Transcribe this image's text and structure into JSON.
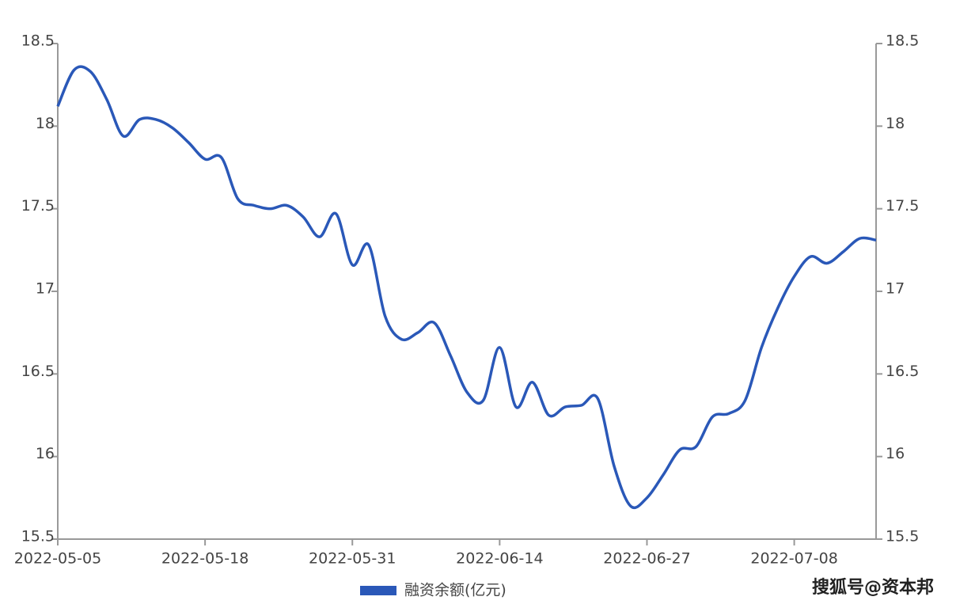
{
  "chart_data": {
    "type": "line",
    "categories": [
      "2022-05-05",
      null,
      null,
      null,
      null,
      null,
      null,
      null,
      null,
      "2022-05-18",
      null,
      null,
      null,
      null,
      null,
      null,
      null,
      null,
      "2022-05-31",
      null,
      null,
      null,
      null,
      null,
      null,
      null,
      null,
      "2022-06-14",
      null,
      null,
      null,
      null,
      null,
      null,
      null,
      null,
      "2022-06-27",
      null,
      null,
      null,
      null,
      null,
      null,
      null,
      null,
      "2022-07-08",
      null,
      null,
      null,
      null,
      null
    ],
    "series": [
      {
        "name": "融资余额(亿元)",
        "color": "#2a58b8",
        "values": [
          18.12,
          18.34,
          18.33,
          18.16,
          17.94,
          18.04,
          18.04,
          17.99,
          17.9,
          17.8,
          17.81,
          17.56,
          17.52,
          17.5,
          17.52,
          17.45,
          17.33,
          17.47,
          17.16,
          17.28,
          16.85,
          16.71,
          16.75,
          16.81,
          16.61,
          16.39,
          16.34,
          16.66,
          16.3,
          16.45,
          16.25,
          16.3,
          16.31,
          16.35,
          15.94,
          15.7,
          15.75,
          15.89,
          16.04,
          16.06,
          16.24,
          16.26,
          16.34,
          16.66,
          16.9,
          17.09,
          17.21,
          17.17,
          17.24,
          17.32,
          17.31
        ]
      }
    ],
    "ylim": [
      15.5,
      18.5
    ],
    "yticks": [
      15.5,
      16,
      16.5,
      17,
      17.5,
      18,
      18.5
    ],
    "y2lim": [
      15.5,
      18.5
    ],
    "y2ticks": [
      15.5,
      16,
      16.5,
      17,
      17.5,
      18,
      18.5
    ],
    "legend": "bottom",
    "grid": false,
    "watermark": "搜狐号@资本邦"
  }
}
